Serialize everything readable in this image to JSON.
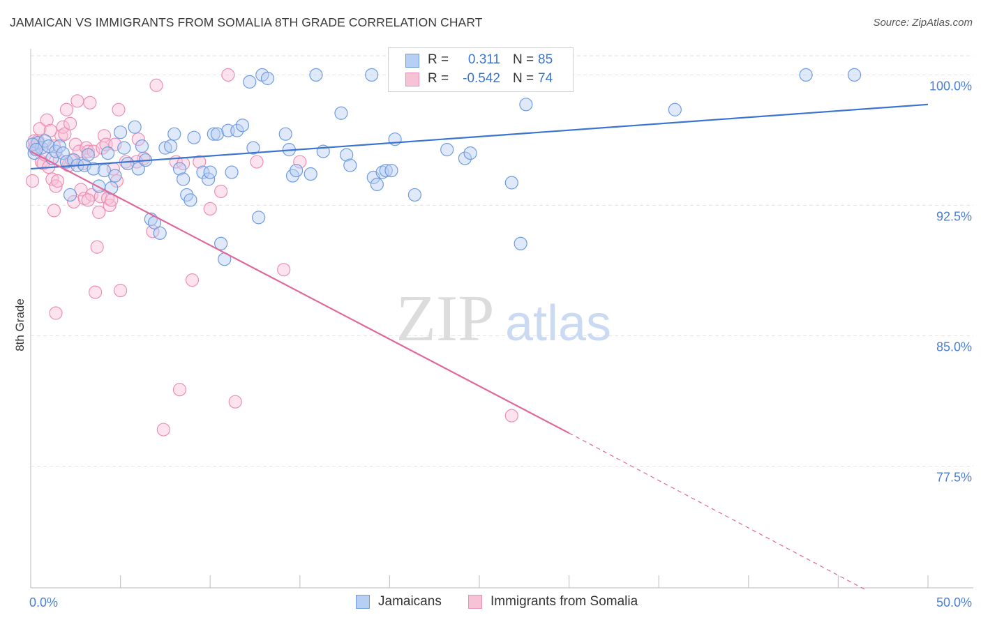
{
  "title": "JAMAICAN VS IMMIGRANTS FROM SOMALIA 8TH GRADE CORRELATION CHART",
  "source": "Source: ZipAtlas.com",
  "watermark": {
    "zip": "ZIP",
    "atlas": "atlas"
  },
  "colors": {
    "blue": "#3a74d0",
    "blue_fill": "#b7cff2",
    "blue_stroke": "#6f9be0",
    "pink": "#e0679a",
    "pink_fill": "#f8c2d6",
    "pink_stroke": "#eb8fb3",
    "tick_label": "#4a7fd4",
    "grid": "#e2e2e2"
  },
  "stats": [
    {
      "r_label": "R =",
      "r_value": "0.311",
      "n_label": "N =",
      "n_value": "85",
      "color": "blue"
    },
    {
      "r_label": "R =",
      "r_value": "-0.542",
      "n_label": "N =",
      "n_value": "74",
      "color": "pink"
    }
  ],
  "legend": [
    {
      "label": "Jamaicans",
      "color": "blue"
    },
    {
      "label": "Immigrants from Somalia",
      "color": "pink"
    }
  ],
  "chart_data": {
    "type": "scatter",
    "ylabel": "8th Grade",
    "x_tick_labels": [
      "0.0%",
      "50.0%"
    ],
    "y_tick_labels": [
      "100.0%",
      "92.5%",
      "85.0%",
      "77.5%"
    ],
    "xlim": [
      0,
      50
    ],
    "ylim": [
      70.5,
      101.5
    ],
    "y_ticks": [
      100,
      92.5,
      85,
      77.5
    ],
    "grid": true,
    "legend_position": "bottom",
    "series": [
      {
        "name": "Jamaicans",
        "color": "blue",
        "trend": {
          "x": [
            0,
            50
          ],
          "y": [
            94.6,
            98.3
          ]
        },
        "points": [
          [
            0.2,
            95.5
          ],
          [
            0.4,
            96.1
          ],
          [
            0.6,
            95.8
          ],
          [
            0.8,
            96.2
          ],
          [
            1.0,
            95.9
          ],
          [
            1.2,
            95.2
          ],
          [
            1.4,
            95.6
          ],
          [
            1.6,
            95.9
          ],
          [
            1.8,
            95.5
          ],
          [
            2.0,
            95.0
          ],
          [
            2.2,
            93.1
          ],
          [
            2.4,
            95.1
          ],
          [
            2.6,
            94.8
          ],
          [
            3.0,
            94.8
          ],
          [
            3.2,
            95.4
          ],
          [
            3.5,
            94.6
          ],
          [
            3.8,
            93.6
          ],
          [
            4.1,
            94.5
          ],
          [
            4.3,
            95.5
          ],
          [
            4.5,
            93.5
          ],
          [
            4.7,
            94.2
          ],
          [
            5.0,
            96.7
          ],
          [
            5.2,
            95.8
          ],
          [
            5.4,
            94.9
          ],
          [
            5.8,
            97.0
          ],
          [
            6.0,
            94.6
          ],
          [
            6.2,
            95.9
          ],
          [
            6.4,
            95.1
          ],
          [
            6.7,
            91.7
          ],
          [
            6.9,
            91.5
          ],
          [
            7.2,
            90.9
          ],
          [
            7.5,
            95.8
          ],
          [
            7.8,
            95.9
          ],
          [
            8.0,
            96.6
          ],
          [
            8.3,
            94.6
          ],
          [
            8.5,
            94.0
          ],
          [
            8.7,
            93.1
          ],
          [
            8.9,
            92.8
          ],
          [
            9.1,
            96.4
          ],
          [
            9.6,
            94.4
          ],
          [
            9.9,
            94.0
          ],
          [
            10.0,
            94.4
          ],
          [
            10.2,
            96.6
          ],
          [
            10.4,
            96.6
          ],
          [
            10.6,
            90.3
          ],
          [
            10.8,
            89.4
          ],
          [
            11.0,
            96.8
          ],
          [
            11.2,
            94.4
          ],
          [
            11.5,
            96.8
          ],
          [
            11.8,
            97.1
          ],
          [
            12.2,
            99.6
          ],
          [
            12.4,
            95.8
          ],
          [
            12.7,
            91.8
          ],
          [
            12.9,
            100.0
          ],
          [
            13.2,
            99.8
          ],
          [
            14.2,
            96.6
          ],
          [
            14.4,
            95.7
          ],
          [
            14.6,
            94.2
          ],
          [
            14.8,
            94.5
          ],
          [
            15.6,
            94.3
          ],
          [
            15.9,
            100.0
          ],
          [
            16.3,
            95.6
          ],
          [
            17.3,
            97.8
          ],
          [
            17.6,
            95.4
          ],
          [
            17.8,
            94.8
          ],
          [
            19.0,
            100.0
          ],
          [
            19.1,
            94.1
          ],
          [
            19.3,
            93.7
          ],
          [
            19.6,
            94.4
          ],
          [
            19.8,
            94.5
          ],
          [
            20.1,
            94.5
          ],
          [
            20.3,
            96.3
          ],
          [
            21.4,
            93.1
          ],
          [
            23.2,
            95.7
          ],
          [
            24.2,
            95.2
          ],
          [
            24.5,
            95.5
          ],
          [
            26.2,
            100.0
          ],
          [
            26.8,
            93.8
          ],
          [
            27.3,
            90.3
          ],
          [
            27.6,
            98.3
          ],
          [
            35.9,
            98.0
          ],
          [
            43.2,
            100.0
          ],
          [
            45.9,
            100.0
          ],
          [
            0.1,
            96.0
          ],
          [
            0.3,
            95.7
          ]
        ]
      },
      {
        "name": "Immigrants from Somalia",
        "color": "pink",
        "trend": {
          "x": [
            0,
            30
          ],
          "y": [
            95.6,
            79.4
          ]
        },
        "trend_dashed": {
          "x": [
            30,
            46.5
          ],
          "y": [
            79.4,
            70.4
          ]
        },
        "points": [
          [
            0.1,
            93.9
          ],
          [
            0.2,
            95.8
          ],
          [
            0.3,
            96.0
          ],
          [
            0.4,
            96.2
          ],
          [
            0.5,
            96.9
          ],
          [
            0.6,
            95.0
          ],
          [
            0.7,
            94.9
          ],
          [
            0.8,
            95.4
          ],
          [
            0.9,
            97.4
          ],
          [
            1.0,
            94.7
          ],
          [
            1.1,
            96.8
          ],
          [
            1.2,
            94.0
          ],
          [
            1.3,
            92.2
          ],
          [
            1.4,
            93.6
          ],
          [
            1.5,
            93.9
          ],
          [
            1.6,
            95.1
          ],
          [
            1.7,
            96.5
          ],
          [
            1.8,
            97.0
          ],
          [
            1.9,
            96.6
          ],
          [
            2.0,
            98.0
          ],
          [
            2.1,
            94.8
          ],
          [
            2.2,
            97.2
          ],
          [
            2.3,
            95.1
          ],
          [
            2.4,
            92.7
          ],
          [
            2.5,
            96.0
          ],
          [
            2.6,
            98.5
          ],
          [
            2.7,
            95.6
          ],
          [
            2.8,
            93.4
          ],
          [
            2.9,
            94.9
          ],
          [
            3.0,
            92.9
          ],
          [
            3.1,
            95.8
          ],
          [
            3.2,
            95.6
          ],
          [
            3.3,
            98.4
          ],
          [
            3.4,
            93.1
          ],
          [
            3.5,
            95.6
          ],
          [
            3.6,
            87.5
          ],
          [
            3.7,
            90.1
          ],
          [
            3.8,
            92.1
          ],
          [
            3.9,
            93.0
          ],
          [
            4.0,
            95.8
          ],
          [
            4.1,
            96.5
          ],
          [
            4.2,
            96.0
          ],
          [
            4.3,
            92.9
          ],
          [
            4.4,
            92.5
          ],
          [
            4.5,
            92.8
          ],
          [
            4.6,
            94.6
          ],
          [
            4.7,
            96.0
          ],
          [
            4.8,
            93.9
          ],
          [
            4.9,
            98.0
          ],
          [
            5.0,
            87.6
          ],
          [
            5.3,
            95.0
          ],
          [
            1.4,
            86.3
          ],
          [
            6.0,
            96.3
          ],
          [
            6.3,
            95.2
          ],
          [
            6.8,
            91.0
          ],
          [
            7.0,
            99.4
          ],
          [
            5.9,
            95.0
          ],
          [
            8.1,
            95.0
          ],
          [
            8.3,
            81.9
          ],
          [
            8.5,
            94.9
          ],
          [
            9.0,
            88.2
          ],
          [
            9.4,
            95.0
          ],
          [
            10.0,
            92.3
          ],
          [
            10.6,
            93.3
          ],
          [
            11.0,
            100.0
          ],
          [
            11.4,
            81.2
          ],
          [
            12.6,
            95.0
          ],
          [
            14.1,
            88.8
          ],
          [
            15.0,
            95.0
          ],
          [
            26.8,
            80.4
          ],
          [
            7.4,
            79.6
          ],
          [
            3.2,
            92.8
          ],
          [
            1.3,
            95.9
          ],
          [
            0.2,
            96.2
          ]
        ]
      }
    ]
  }
}
